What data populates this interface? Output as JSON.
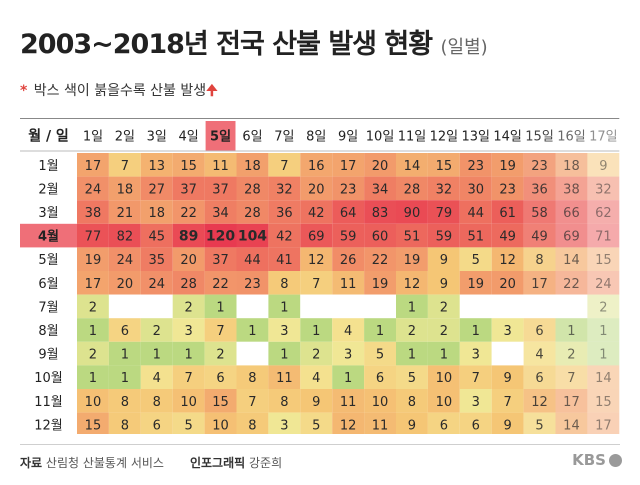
{
  "title": "2003~2018년 전국 산불 발생 현황",
  "subtitle": "(일별)",
  "note": {
    "asterisk": "*",
    "text": "박스 색이 붉을수록 산불 발생",
    "arrow": "🠉"
  },
  "footer": {
    "source_label": "자료",
    "source": "산림청 산불통계 서비스",
    "graphic_label": "인포그래픽",
    "graphic": "강준희",
    "logo": "KBS"
  },
  "chart_data": {
    "type": "heatmap",
    "corner_label": "월 / 일",
    "columns": [
      "1일",
      "2일",
      "3일",
      "4일",
      "5일",
      "6일",
      "7일",
      "8일",
      "9일",
      "10일",
      "11일",
      "12일",
      "13일",
      "14일",
      "15일",
      "16일",
      "17일"
    ],
    "rows": [
      "1월",
      "2월",
      "3월",
      "4월",
      "5월",
      "6월",
      "7월",
      "8월",
      "9월",
      "10월",
      "11월",
      "12월"
    ],
    "highlight_column": "5일",
    "highlight_row": "4월",
    "bold_cells": [
      [
        3,
        3
      ],
      [
        3,
        4
      ],
      [
        3,
        5
      ]
    ],
    "values": [
      [
        17,
        7,
        13,
        15,
        11,
        18,
        7,
        16,
        17,
        20,
        14,
        15,
        23,
        19,
        23,
        18,
        9
      ],
      [
        24,
        18,
        27,
        37,
        37,
        28,
        32,
        20,
        23,
        34,
        28,
        32,
        30,
        23,
        36,
        38,
        32
      ],
      [
        38,
        21,
        18,
        22,
        34,
        28,
        36,
        42,
        64,
        83,
        90,
        79,
        44,
        61,
        58,
        66,
        62
      ],
      [
        77,
        82,
        45,
        89,
        120,
        104,
        42,
        69,
        59,
        60,
        51,
        59,
        51,
        49,
        49,
        69,
        71
      ],
      [
        19,
        24,
        35,
        20,
        37,
        44,
        41,
        12,
        26,
        22,
        19,
        9,
        5,
        12,
        8,
        14,
        15
      ],
      [
        17,
        20,
        24,
        28,
        22,
        23,
        8,
        7,
        11,
        19,
        12,
        9,
        19,
        20,
        17,
        22,
        24
      ],
      [
        2,
        null,
        null,
        2,
        1,
        null,
        1,
        null,
        null,
        null,
        1,
        2,
        null,
        null,
        null,
        null,
        2
      ],
      [
        1,
        6,
        2,
        3,
        7,
        1,
        3,
        1,
        4,
        1,
        2,
        2,
        1,
        3,
        6,
        1,
        1
      ],
      [
        2,
        1,
        1,
        1,
        2,
        null,
        1,
        2,
        3,
        5,
        1,
        1,
        3,
        null,
        4,
        2,
        1
      ],
      [
        1,
        1,
        4,
        7,
        6,
        8,
        11,
        4,
        1,
        6,
        5,
        10,
        7,
        9,
        6,
        7,
        14
      ],
      [
        10,
        8,
        8,
        10,
        15,
        7,
        8,
        9,
        11,
        10,
        8,
        10,
        3,
        7,
        12,
        17,
        15
      ],
      [
        15,
        8,
        6,
        5,
        10,
        8,
        3,
        5,
        12,
        11,
        9,
        6,
        6,
        9,
        5,
        14,
        17
      ]
    ]
  }
}
